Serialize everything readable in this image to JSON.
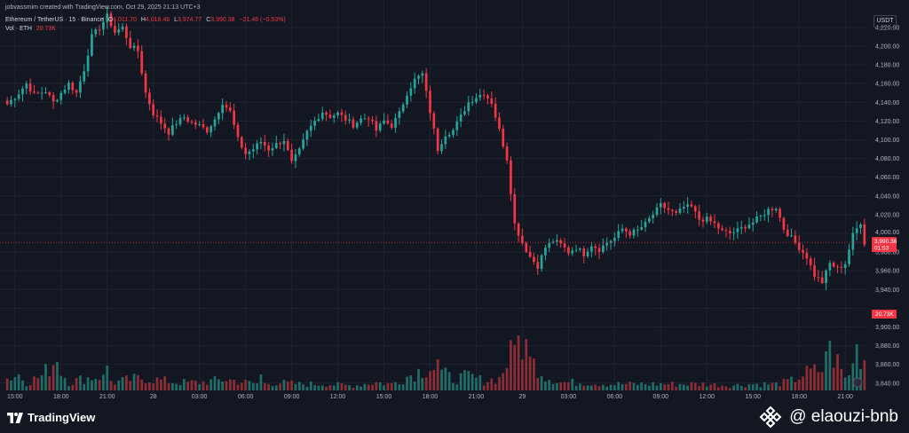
{
  "header": {
    "credit": "jobvassmim created with TradingView.com, Oct 29, 2025 21:13 UTC+3",
    "symbol": "Ethereum / TetherUS · 15 · Binance",
    "ohlc": {
      "o_label": "O",
      "o": "4,011.70",
      "h_label": "H",
      "h": "4,018.46",
      "l_label": "L",
      "l": "3,974.77",
      "c_label": "C",
      "c": "3,990.38",
      "change": "−21.46 (−0.53%)"
    },
    "volume_label": "Vol · ETH",
    "volume_value": "20.73K"
  },
  "price_axis": {
    "currency": "USDT",
    "last_price": "3,990.38",
    "countdown": "01:53",
    "volume_tag": "20.73K"
  },
  "footer": {
    "logo": "TradingView",
    "watermark": "@ elaouzi-bnb"
  },
  "colors": {
    "background": "#131722",
    "grid": "#1f2330",
    "up": "#26a69a",
    "down": "#f23645",
    "up_volume": "#1f6f68",
    "down_volume": "#8f2d36"
  },
  "chart_data": {
    "type": "candlestick",
    "y_ticks": [
      3840,
      3860,
      3880,
      3900,
      3920,
      3940,
      3960,
      3980,
      4000,
      4020,
      4040,
      4060,
      4080,
      4100,
      4120,
      4140,
      4160,
      4180,
      4200,
      4220
    ],
    "y_tick_labels": [
      "3,840.00",
      "3,860.00",
      "3,880.00",
      "3,900.00",
      "3,920.00",
      "3,940.00",
      "3,960.00",
      "3,980.00",
      "4,000.00",
      "4,020.00",
      "4,040.00",
      "4,060.00",
      "4,080.00",
      "4,100.00",
      "4,120.00",
      "4,140.00",
      "4,160.00",
      "4,180.00",
      "4,200.00",
      "4,220.00"
    ],
    "ylim": [
      3836,
      4236
    ],
    "x_tick_labels": [
      "15:00",
      "18:00",
      "21:00",
      "28",
      "03:00",
      "06:00",
      "09:00",
      "12:00",
      "15:00",
      "18:00",
      "21:00",
      "29",
      "03:00",
      "06:00",
      "09:00",
      "12:00",
      "15:00",
      "18:00",
      "21:00"
    ],
    "x_tick_bars": [
      2,
      14,
      26,
      38,
      50,
      62,
      74,
      86,
      98,
      110,
      122,
      134,
      146,
      158,
      170,
      182,
      194,
      206,
      218
    ],
    "close_waypoints": [
      [
        0,
        4138
      ],
      [
        3,
        4150
      ],
      [
        5,
        4160
      ],
      [
        7,
        4148
      ],
      [
        10,
        4152
      ],
      [
        12,
        4140
      ],
      [
        14,
        4150
      ],
      [
        16,
        4160
      ],
      [
        18,
        4150
      ],
      [
        20,
        4175
      ],
      [
        22,
        4210
      ],
      [
        24,
        4220
      ],
      [
        26,
        4232
      ],
      [
        28,
        4215
      ],
      [
        30,
        4220
      ],
      [
        32,
        4200
      ],
      [
        34,
        4195
      ],
      [
        36,
        4150
      ],
      [
        38,
        4128
      ],
      [
        40,
        4118
      ],
      [
        42,
        4108
      ],
      [
        44,
        4118
      ],
      [
        46,
        4124
      ],
      [
        48,
        4118
      ],
      [
        50,
        4115
      ],
      [
        52,
        4110
      ],
      [
        54,
        4122
      ],
      [
        56,
        4140
      ],
      [
        58,
        4130
      ],
      [
        60,
        4100
      ],
      [
        62,
        4085
      ],
      [
        64,
        4090
      ],
      [
        66,
        4098
      ],
      [
        68,
        4090
      ],
      [
        70,
        4095
      ],
      [
        72,
        4100
      ],
      [
        74,
        4075
      ],
      [
        76,
        4088
      ],
      [
        78,
        4108
      ],
      [
        80,
        4120
      ],
      [
        82,
        4130
      ],
      [
        84,
        4125
      ],
      [
        86,
        4128
      ],
      [
        88,
        4122
      ],
      [
        90,
        4116
      ],
      [
        92,
        4122
      ],
      [
        94,
        4124
      ],
      [
        96,
        4110
      ],
      [
        98,
        4120
      ],
      [
        100,
        4115
      ],
      [
        102,
        4128
      ],
      [
        104,
        4150
      ],
      [
        106,
        4164
      ],
      [
        108,
        4170
      ],
      [
        110,
        4130
      ],
      [
        112,
        4090
      ],
      [
        114,
        4106
      ],
      [
        116,
        4110
      ],
      [
        118,
        4125
      ],
      [
        120,
        4140
      ],
      [
        122,
        4146
      ],
      [
        124,
        4150
      ],
      [
        126,
        4140
      ],
      [
        128,
        4110
      ],
      [
        130,
        4080
      ],
      [
        132,
        4010
      ],
      [
        134,
        3990
      ],
      [
        136,
        3975
      ],
      [
        138,
        3965
      ],
      [
        140,
        3985
      ],
      [
        142,
        3992
      ],
      [
        144,
        3988
      ],
      [
        146,
        3980
      ],
      [
        148,
        3985
      ],
      [
        150,
        3978
      ],
      [
        152,
        3988
      ],
      [
        154,
        3983
      ],
      [
        156,
        3990
      ],
      [
        158,
        3995
      ],
      [
        160,
        4005
      ],
      [
        162,
        4000
      ],
      [
        164,
        4003
      ],
      [
        166,
        4010
      ],
      [
        168,
        4020
      ],
      [
        170,
        4030
      ],
      [
        172,
        4025
      ],
      [
        174,
        4020
      ],
      [
        176,
        4028
      ],
      [
        178,
        4028
      ],
      [
        180,
        4015
      ],
      [
        182,
        4015
      ],
      [
        184,
        4010
      ],
      [
        186,
        4002
      ],
      [
        188,
        4000
      ],
      [
        190,
        4003
      ],
      [
        192,
        4008
      ],
      [
        194,
        4012
      ],
      [
        196,
        4018
      ],
      [
        198,
        4025
      ],
      [
        200,
        4028
      ],
      [
        202,
        4005
      ],
      [
        204,
        3995
      ],
      [
        206,
        3985
      ],
      [
        208,
        3975
      ],
      [
        210,
        3955
      ],
      [
        212,
        3948
      ],
      [
        214,
        3968
      ],
      [
        216,
        3962
      ],
      [
        218,
        3968
      ],
      [
        220,
        3998
      ],
      [
        222,
        4012
      ],
      [
        223,
        3990
      ]
    ],
    "volume_waypoints": [
      [
        0,
        15
      ],
      [
        3,
        20
      ],
      [
        5,
        10
      ],
      [
        9,
        18
      ],
      [
        12,
        35
      ],
      [
        14,
        25
      ],
      [
        16,
        10
      ],
      [
        20,
        15
      ],
      [
        24,
        18
      ],
      [
        28,
        10
      ],
      [
        32,
        14
      ],
      [
        35,
        15
      ],
      [
        38,
        14
      ],
      [
        44,
        10
      ],
      [
        50,
        10
      ],
      [
        54,
        12
      ],
      [
        57,
        14
      ],
      [
        62,
        10
      ],
      [
        66,
        8
      ],
      [
        70,
        10
      ],
      [
        76,
        8
      ],
      [
        82,
        8
      ],
      [
        90,
        6
      ],
      [
        96,
        10
      ],
      [
        100,
        8
      ],
      [
        106,
        22
      ],
      [
        110,
        30
      ],
      [
        112,
        25
      ],
      [
        116,
        14
      ],
      [
        120,
        18
      ],
      [
        124,
        12
      ],
      [
        128,
        15
      ],
      [
        130,
        35
      ],
      [
        132,
        52
      ],
      [
        134,
        60
      ],
      [
        136,
        36
      ],
      [
        138,
        30
      ],
      [
        140,
        18
      ],
      [
        144,
        10
      ],
      [
        150,
        10
      ],
      [
        156,
        8
      ],
      [
        162,
        8
      ],
      [
        168,
        8
      ],
      [
        174,
        8
      ],
      [
        182,
        8
      ],
      [
        188,
        6
      ],
      [
        194,
        8
      ],
      [
        200,
        8
      ],
      [
        204,
        12
      ],
      [
        208,
        22
      ],
      [
        212,
        26
      ],
      [
        214,
        50
      ],
      [
        216,
        35
      ],
      [
        218,
        15
      ],
      [
        220,
        30
      ],
      [
        222,
        45
      ],
      [
        223,
        40
      ]
    ],
    "volume_spikes": [
      [
        13,
        32
      ],
      [
        26,
        28
      ],
      [
        66,
        18
      ],
      [
        112,
        35
      ],
      [
        133,
        62
      ],
      [
        135,
        58
      ],
      [
        214,
        56
      ],
      [
        221,
        52
      ]
    ]
  }
}
